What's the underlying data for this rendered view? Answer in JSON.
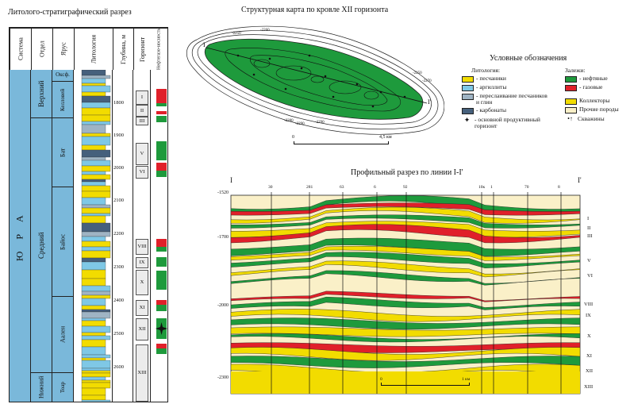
{
  "titles": {
    "column": "Литолого-стратиграфический разрез",
    "map": "Структурная карта по кровле XII горизонта",
    "profile": "Профильный разрез по линии I-I'"
  },
  "column_headers": {
    "system": "Система",
    "division": "Отдел",
    "stage": "Ярус",
    "lithology": "Литология",
    "depth": "Глубина, м",
    "horizon": "Горизонт",
    "oil": "Нефтегазо-носность"
  },
  "system": "Ю Р А",
  "divisions": [
    "Верхний",
    "Средний",
    "Нижний"
  ],
  "stages": [
    "Оксф.",
    "Келловей",
    "Бат",
    "Байос",
    "Аален",
    "Тоар"
  ],
  "depth_ticks": [
    "1800",
    "1900",
    "2000",
    "2100",
    "2200",
    "2300",
    "2400",
    "2500",
    "2600"
  ],
  "horizons": [
    "I",
    "II",
    "III",
    "V",
    "VI",
    "VIII",
    "IX",
    "X",
    "XI",
    "XII",
    "XIII"
  ],
  "legend": {
    "title": "Условные обозначения",
    "lithology_title": "Литология:",
    "lithology": [
      {
        "label": "- песчаники",
        "color": "#f2dc00"
      },
      {
        "label": "- аргиллиты",
        "color": "#7fc8e6"
      },
      {
        "label": "- переслаивание песчаников и глин",
        "color": "#9fb4c4"
      },
      {
        "label": "- карбонаты",
        "color": "#46607c"
      }
    ],
    "main_horizon": "- основной продуктивный горизонт",
    "deposits_title": "Залежи:",
    "deposits": [
      {
        "label": "- нефтяные",
        "color": "#1e9a3c"
      },
      {
        "label": "- газовые",
        "color": "#e0202a"
      }
    ],
    "collectors": {
      "label": "Коллекторы",
      "color": "#f2dc00"
    },
    "other_rocks": {
      "label": "Прочие породы",
      "color": "#faf0c8"
    },
    "wells": "Скважины"
  },
  "map": {
    "line_start": "I",
    "line_end": "I'",
    "scale_start": "0",
    "scale_end": "4,5 км",
    "contour_labels": [
      "-2250",
      "-2260",
      "-2250",
      "-2270",
      "-2280",
      "-2290",
      "-2290"
    ]
  },
  "profile": {
    "left_label": "I",
    "right_label": "I'",
    "wells": [
      "30",
      "281",
      "63",
      "6",
      "92",
      "10к",
      "1",
      "70",
      "8"
    ],
    "depth_ticks": [
      "-1520",
      "-1700",
      "-2000",
      "-2300"
    ],
    "horizons": [
      "I",
      "II",
      "III",
      "V",
      "VI",
      "VIII",
      "IX",
      "X",
      "XI",
      "XII",
      "XIII"
    ],
    "scale_start": "0",
    "scale_end": "1 км"
  },
  "colors": {
    "sand": "#f2dc00",
    "clay": "#7fc8e6",
    "mixed": "#9fb4c4",
    "carbonate": "#46607c",
    "oil": "#1e9a3c",
    "gas": "#e0202a",
    "other": "#faf0c8",
    "system_blue": "#7ab8da"
  }
}
